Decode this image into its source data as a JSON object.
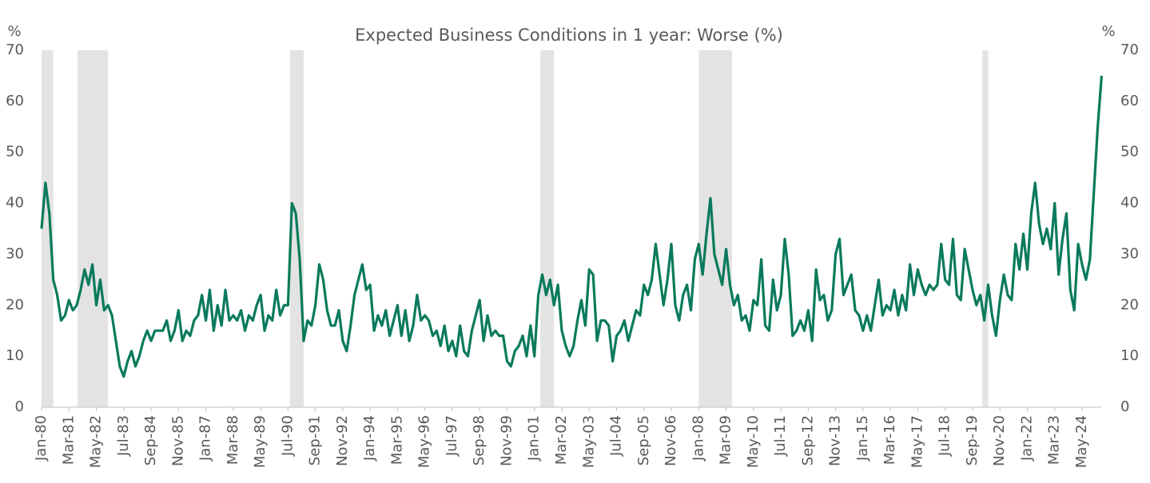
{
  "chart_data": {
    "type": "line",
    "title": "Expected Business Conditions in 1 year: Worse (%)",
    "y_label": "%",
    "y2_label": "%",
    "color": "#0a7a5c",
    "shade_color": "#e3e3e3",
    "shaded_periods": [
      [
        0,
        3
      ],
      [
        9.2,
        17
      ],
      [
        63.5,
        67
      ],
      [
        127.5,
        131
      ],
      [
        168,
        176.5
      ],
      [
        240.5,
        242
      ]
    ],
    "ylim": [
      0,
      70
    ],
    "yticks": [
      0,
      10,
      20,
      30,
      40,
      50,
      60,
      70
    ],
    "y2lim": [
      0,
      70
    ],
    "y2ticks": [
      0,
      10,
      20,
      30,
      40,
      50,
      60,
      70
    ],
    "grid": false,
    "categories": [
      "Jan-80",
      null,
      null,
      null,
      null,
      null,
      null,
      "Mar-81",
      null,
      null,
      null,
      null,
      null,
      null,
      "May-82",
      null,
      null,
      null,
      null,
      null,
      null,
      "Jul-83",
      null,
      null,
      null,
      null,
      null,
      null,
      "Sep-84",
      null,
      null,
      null,
      null,
      null,
      null,
      "Nov-85",
      null,
      null,
      null,
      null,
      null,
      null,
      "Jan-87",
      null,
      null,
      null,
      null,
      null,
      null,
      "Mar-88",
      null,
      null,
      null,
      null,
      null,
      null,
      "May-89",
      null,
      null,
      null,
      null,
      null,
      null,
      "Jul-90",
      null,
      null,
      null,
      null,
      null,
      null,
      "Sep-91",
      null,
      null,
      null,
      null,
      null,
      null,
      "Nov-92",
      null,
      null,
      null,
      null,
      null,
      null,
      "Jan-94",
      null,
      null,
      null,
      null,
      null,
      null,
      "Mar-95",
      null,
      null,
      null,
      null,
      null,
      null,
      "May-96",
      null,
      null,
      null,
      null,
      null,
      null,
      "Jul-97",
      null,
      null,
      null,
      null,
      null,
      null,
      "Sep-98",
      null,
      null,
      null,
      null,
      null,
      null,
      "Nov-99",
      null,
      null,
      null,
      null,
      null,
      null,
      "Jan-01",
      null,
      null,
      null,
      null,
      null,
      null,
      "Mar-02",
      null,
      null,
      null,
      null,
      null,
      null,
      "May-03",
      null,
      null,
      null,
      null,
      null,
      null,
      "Jul-04",
      null,
      null,
      null,
      null,
      null,
      null,
      "Sep-05",
      null,
      null,
      null,
      null,
      null,
      null,
      "Nov-06",
      null,
      null,
      null,
      null,
      null,
      null,
      "Jan-08",
      null,
      null,
      null,
      null,
      null,
      null,
      "Mar-09",
      null,
      null,
      null,
      null,
      null,
      null,
      "May-10",
      null,
      null,
      null,
      null,
      null,
      null,
      "Jul-11",
      null,
      null,
      null,
      null,
      null,
      null,
      "Sep-12",
      null,
      null,
      null,
      null,
      null,
      null,
      "Nov-13",
      null,
      null,
      null,
      null,
      null,
      null,
      "Jan-15",
      null,
      null,
      null,
      null,
      null,
      null,
      "Mar-16",
      null,
      null,
      null,
      null,
      null,
      null,
      "May-17",
      null,
      null,
      null,
      null,
      null,
      null,
      "Jul-18",
      null,
      null,
      null,
      null,
      null,
      null,
      "Sep-19",
      null,
      null,
      null,
      null,
      null,
      null,
      "Nov-20",
      null,
      null,
      null,
      null,
      null,
      null,
      "Jan-22",
      null,
      null,
      null,
      null,
      null,
      null,
      "Mar-23",
      null,
      null,
      null,
      null,
      null,
      null,
      "May-24",
      null,
      null,
      null,
      null,
      null
    ],
    "values": [
      35,
      44,
      38,
      25,
      22,
      17,
      18,
      21,
      19,
      20,
      23,
      27,
      24,
      28,
      20,
      25,
      19,
      20,
      18,
      13,
      8,
      6,
      9,
      11,
      8,
      10,
      13,
      15,
      13,
      15,
      15,
      15,
      17,
      13,
      15,
      19,
      13,
      15,
      14,
      17,
      18,
      22,
      17,
      23,
      15,
      20,
      16,
      23,
      17,
      18,
      17,
      19,
      15,
      18,
      17,
      20,
      22,
      15,
      18,
      17,
      23,
      18,
      20,
      20,
      40,
      38,
      29,
      13,
      17,
      16,
      20,
      28,
      25,
      19,
      16,
      16,
      19,
      13,
      11,
      16,
      22,
      25,
      28,
      23,
      24,
      15,
      18,
      16,
      19,
      14,
      17,
      20,
      14,
      19,
      13,
      16,
      22,
      17,
      18,
      17,
      14,
      15,
      12,
      16,
      11,
      13,
      10,
      16,
      11,
      10,
      15,
      18,
      21,
      13,
      18,
      14,
      15,
      14,
      14,
      9,
      8,
      11,
      12,
      14,
      10,
      16,
      10,
      22,
      26,
      22,
      25,
      20,
      24,
      15,
      12,
      10,
      12,
      17,
      21,
      16,
      27,
      26,
      13,
      17,
      17,
      16,
      9,
      14,
      15,
      17,
      13,
      16,
      19,
      18,
      24,
      22,
      25,
      32,
      26,
      20,
      25,
      32,
      20,
      17,
      22,
      24,
      19,
      29,
      32,
      26,
      34,
      41,
      30,
      27,
      24,
      31,
      24,
      20,
      22,
      17,
      18,
      15,
      21,
      20,
      29,
      16,
      15,
      25,
      19,
      22,
      33,
      26,
      14,
      15,
      17,
      15,
      19,
      13,
      27,
      21,
      22,
      17,
      19,
      30,
      33,
      22,
      24,
      26,
      19,
      18,
      15,
      18,
      15,
      20,
      25,
      18,
      20,
      19,
      23,
      18,
      22,
      19,
      28,
      22,
      27,
      24,
      22,
      24,
      23,
      24,
      32,
      25,
      24,
      33,
      22,
      21,
      31,
      27,
      23,
      20,
      22,
      17,
      24,
      18,
      14,
      21,
      26,
      22,
      21,
      32,
      27,
      34,
      27,
      38,
      44,
      36,
      32,
      35,
      31,
      40,
      26,
      33,
      38,
      23,
      19,
      32,
      28,
      25,
      29,
      42,
      55,
      65
    ]
  }
}
